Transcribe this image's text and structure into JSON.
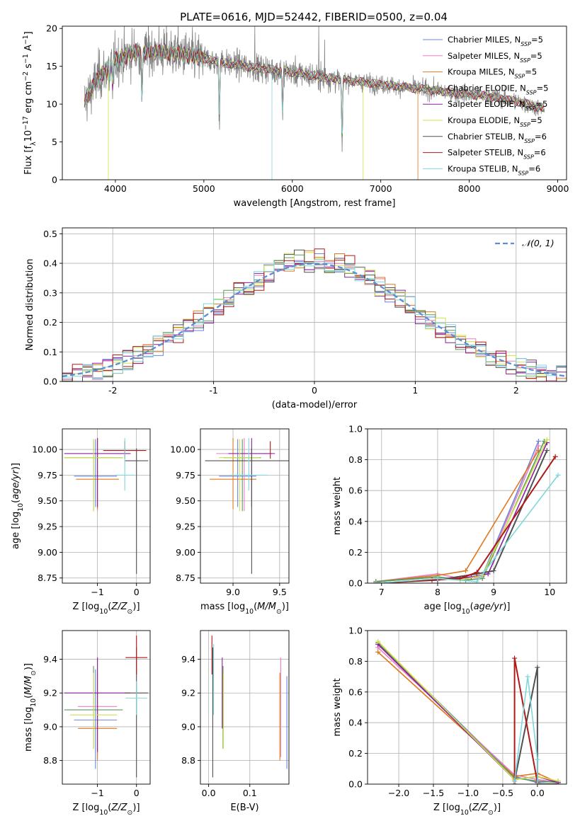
{
  "figure_title": "PLATE=0616, MJD=52442, FIBERID=0500, z=0.04",
  "colors": {
    "series": [
      "#6a86e0",
      "#e87fc2",
      "#e0781e",
      "#5a9a5a",
      "#8a1e9e",
      "#cfe24a",
      "#505050",
      "#b01818",
      "#7fd8dc"
    ],
    "gaussian": "#5b8fd4",
    "grid": "#b0b0b0",
    "spectrum_data": "#808080"
  },
  "legend_labels": {
    "spectrum": [
      {
        "pre": "Chabrier MILES, N",
        "sub": "SSP",
        "post": "=5"
      },
      {
        "pre": "Salpeter MILES, N",
        "sub": "SSP",
        "post": "=5"
      },
      {
        "pre": "Kroupa MILES, N",
        "sub": "SSP",
        "post": "=5"
      },
      {
        "pre": "Chabrier ELODIE, N",
        "sub": "SSP",
        "post": "=5"
      },
      {
        "pre": "Salpeter ELODIE, N",
        "sub": "SSP",
        "post": "=5"
      },
      {
        "pre": "Kroupa ELODIE, N",
        "sub": "SSP",
        "post": "=5"
      },
      {
        "pre": "Chabrier STELIB, N",
        "sub": "SSP",
        "post": "=6"
      },
      {
        "pre": "Salpeter STELIB, N",
        "sub": "SSP",
        "post": "=6"
      },
      {
        "pre": "Kroupa STELIB, N",
        "sub": "SSP",
        "post": "=6"
      }
    ],
    "gaussian": "𝒩(0, 1)"
  },
  "chart_data": [
    {
      "id": "spectrum",
      "type": "line",
      "xlabel": "wavelength [Angstrom, rest frame]",
      "ylabel": {
        "pre": "Flux [f",
        "sub": "λ",
        "mid": "10",
        "sup1": "−17",
        "post1": " erg cm",
        "sup2": "−2",
        "post2": " s",
        "sup3": "−1",
        "post3": " A",
        "sup4": "−1",
        "post4": "]"
      },
      "xlim": [
        3400,
        9100
      ],
      "ylim": [
        0,
        20.3
      ],
      "xticks": [
        4000,
        5000,
        6000,
        7000,
        8000,
        9000
      ],
      "yticks": [
        0,
        5,
        10,
        15,
        20
      ],
      "continuum": [
        [
          3650,
          10.3
        ],
        [
          3700,
          11.2
        ],
        [
          3800,
          13.5
        ],
        [
          3900,
          14.5
        ],
        [
          4000,
          15.8
        ],
        [
          4200,
          16.8
        ],
        [
          4400,
          17.0
        ],
        [
          4600,
          16.8
        ],
        [
          4800,
          16.5
        ],
        [
          5000,
          16.0
        ],
        [
          5300,
          15.3
        ],
        [
          5600,
          14.8
        ],
        [
          6000,
          14.2
        ],
        [
          6300,
          13.6
        ],
        [
          6600,
          13.2
        ],
        [
          7000,
          12.6
        ],
        [
          7300,
          12.2
        ],
        [
          7600,
          11.8
        ],
        [
          8000,
          11.3
        ],
        [
          8300,
          10.9
        ],
        [
          8600,
          10.2
        ],
        [
          8850,
          9.3
        ]
      ],
      "dips": [
        [
          3935,
          2
        ],
        [
          3970,
          3
        ],
        [
          4300,
          7
        ],
        [
          5175,
          8
        ],
        [
          5890,
          6
        ],
        [
          6563,
          9
        ]
      ],
      "model_drops": [
        {
          "series": 2,
          "x": 7420,
          "y": 0
        },
        {
          "series": 5,
          "x": 3920,
          "y": 0
        },
        {
          "series": 5,
          "x": 6800,
          "y": 0
        },
        {
          "series": 8,
          "x": 5770,
          "y": 0
        }
      ],
      "sky_spikes": [
        [
          5577,
          20.3
        ],
        [
          6300,
          20.3
        ],
        [
          6364,
          18.5
        ]
      ],
      "grid": false,
      "legend_position": "upper right"
    },
    {
      "id": "residuals",
      "type": "histogram",
      "xlabel": "(data-model)/error",
      "ylabel": "Normed distribution",
      "xlim": [
        -2.5,
        2.5
      ],
      "ylim": [
        0,
        0.52
      ],
      "xticks": [
        -2,
        -1,
        0,
        1,
        2
      ],
      "yticks": [
        0.0,
        0.1,
        0.2,
        0.3,
        0.4,
        0.5
      ],
      "bin_width": 0.1,
      "bin_range": [
        -2.5,
        2.5
      ],
      "gaussian": {
        "mu": 0,
        "sigma": 1
      },
      "grid": true,
      "legend_position": "upper right"
    },
    {
      "id": "age-vs-Z",
      "type": "errorbar",
      "xlabel": {
        "pre": "Z [log",
        "sub": "10",
        "mid": "(",
        "it": "Z/Z",
        "sub2": "⊙",
        "post": ")]"
      },
      "ylabel": {
        "pre": "age  [log",
        "sub": "10",
        "mid": "(",
        "it": "age/yr",
        "post": ")]"
      },
      "xlim": [
        -1.9,
        0.35
      ],
      "ylim": [
        8.7,
        10.2
      ],
      "xticks": [
        -1,
        0
      ],
      "yticks": [
        8.75,
        9.0,
        9.25,
        9.5,
        9.75,
        10.0
      ],
      "points": [
        {
          "s": 0,
          "x": -1.05,
          "y": 9.74,
          "xerr": 0.55,
          "yerr_lo": 0.3,
          "yerr_hi": 0.36
        },
        {
          "s": 1,
          "x": -1.0,
          "y": 9.96,
          "xerr": 0.85,
          "yerr_lo": 0.56,
          "yerr_hi": 0.15
        },
        {
          "s": 2,
          "x": -1.0,
          "y": 9.71,
          "xerr": 0.55,
          "yerr_lo": 0.29,
          "yerr_hi": 0.4
        },
        {
          "s": 3,
          "x": -1.1,
          "y": 9.92,
          "xerr": 0.75,
          "yerr_lo": 0.52,
          "yerr_hi": 0.18
        },
        {
          "s": 4,
          "x": -1.0,
          "y": 9.96,
          "xerr": 0.85,
          "yerr_lo": 0.52,
          "yerr_hi": 0.15
        },
        {
          "s": 5,
          "x": -1.1,
          "y": 9.92,
          "xerr": 0.75,
          "yerr_lo": 0.52,
          "yerr_hi": 0.18
        },
        {
          "s": 6,
          "x": 0.0,
          "y": 9.89,
          "xerr": 0.3,
          "yerr_lo": 1.1,
          "yerr_hi": 0.12
        },
        {
          "s": 7,
          "x": -0.3,
          "y": 9.99,
          "xerr": 0.55,
          "yerr_lo": 0.08,
          "yerr_hi": 0.09
        },
        {
          "s": 8,
          "x": -0.3,
          "y": 9.75,
          "xerr": 0.25,
          "yerr_lo": 0.15,
          "yerr_hi": 0.36
        }
      ],
      "grid": true
    },
    {
      "id": "age-vs-mass",
      "type": "errorbar",
      "xlabel": {
        "pre": "mass [log",
        "sub": "10",
        "mid": "(",
        "it": "M/M",
        "sub2": "⊙",
        "post": ")]"
      },
      "ylabel": "",
      "xlim": [
        8.65,
        9.6
      ],
      "ylim": [
        8.7,
        10.2
      ],
      "xticks": [
        9.0,
        9.5
      ],
      "yticks": [
        8.75,
        9.0,
        9.25,
        9.5,
        9.75,
        10.0
      ],
      "points": [
        {
          "s": 0,
          "x": 9.05,
          "y": 9.74,
          "xerr": 0.2,
          "yerr_lo": 0.3,
          "yerr_hi": 0.36
        },
        {
          "s": 1,
          "x": 9.12,
          "y": 9.96,
          "xerr": 0.3,
          "yerr_lo": 0.56,
          "yerr_hi": 0.15
        },
        {
          "s": 2,
          "x": 9.0,
          "y": 9.71,
          "xerr": 0.25,
          "yerr_lo": 0.29,
          "yerr_hi": 0.4
        },
        {
          "s": 3,
          "x": 9.1,
          "y": 9.92,
          "xerr": 0.2,
          "yerr_lo": 0.52,
          "yerr_hi": 0.18
        },
        {
          "s": 4,
          "x": 9.2,
          "y": 9.96,
          "xerr": 0.25,
          "yerr_lo": 0.52,
          "yerr_hi": 0.15
        },
        {
          "s": 5,
          "x": 9.07,
          "y": 9.92,
          "xerr": 0.22,
          "yerr_lo": 0.52,
          "yerr_hi": 0.18
        },
        {
          "s": 6,
          "x": 9.2,
          "y": 9.89,
          "xerr": 0.5,
          "yerr_lo": 1.1,
          "yerr_hi": 0.12
        },
        {
          "s": 7,
          "x": 9.4,
          "y": 9.99,
          "xerr": 0.0,
          "yerr_lo": 0.08,
          "yerr_hi": 0.09
        },
        {
          "s": 8,
          "x": 9.17,
          "y": 9.75,
          "xerr": 0.2,
          "yerr_lo": 0.15,
          "yerr_hi": 0.36
        }
      ],
      "grid": true
    },
    {
      "id": "massweight-vs-age",
      "type": "line",
      "xlabel": {
        "pre": "age  [log",
        "sub": "10",
        "mid": "(",
        "it": "age/yr",
        "post": ")]"
      },
      "ylabel": "mass weight",
      "xlim": [
        6.75,
        10.3
      ],
      "ylim": [
        0,
        1.0
      ],
      "xticks": [
        7,
        8,
        9,
        10
      ],
      "yticks": [
        0.0,
        0.2,
        0.4,
        0.6,
        0.8,
        1.0
      ],
      "series": [
        {
          "s": 0,
          "x": [
            6.9,
            8.0,
            8.4,
            8.8,
            9.8
          ],
          "y": [
            0.01,
            0.04,
            0.02,
            0.05,
            0.92
          ]
        },
        {
          "s": 1,
          "x": 6.9,
          "x_pts": [
            6.9,
            8.0,
            8.4,
            8.8,
            9.8
          ],
          "y": [
            0.01,
            0.06,
            0.03,
            0.04,
            0.89
          ]
        },
        {
          "s": 2,
          "x": [
            6.9,
            8.0,
            8.5,
            9.8
          ],
          "y": [
            0.01,
            0.05,
            0.08,
            0.86
          ]
        },
        {
          "s": 3,
          "x": [
            6.9,
            8.0,
            8.5,
            8.8,
            9.9
          ],
          "y": [
            0.01,
            0.04,
            0.02,
            0.03,
            0.92
          ]
        },
        {
          "s": 4,
          "x": [
            6.9,
            8.0,
            8.6,
            8.9,
            9.95
          ],
          "y": [
            0.0,
            0.02,
            0.04,
            0.06,
            0.91
          ]
        },
        {
          "s": 5,
          "x": [
            6.9,
            8.0,
            8.4,
            8.8,
            9.95
          ],
          "y": [
            0.0,
            0.03,
            0.02,
            0.05,
            0.93
          ]
        },
        {
          "s": 6,
          "x": [
            6.9,
            8.0,
            8.7,
            9.0,
            9.95
          ],
          "y": [
            0.0,
            0.02,
            0.06,
            0.08,
            0.86
          ]
        },
        {
          "s": 7,
          "x": [
            6.9,
            7.9,
            8.4,
            8.7,
            10.1
          ],
          "y": [
            0.0,
            0.02,
            0.03,
            0.07,
            0.82
          ]
        },
        {
          "s": 8,
          "x": [
            6.9,
            8.0,
            8.7,
            10.15
          ],
          "y": [
            0.0,
            0.03,
            0.01,
            0.7
          ]
        }
      ],
      "grid": true
    },
    {
      "id": "mass-vs-Z",
      "type": "errorbar",
      "xlabel": {
        "pre": "Z [log",
        "sub": "10",
        "mid": "(",
        "it": "Z/Z",
        "sub2": "⊙",
        "post": ")]"
      },
      "ylabel": {
        "pre": "mass [log",
        "sub": "10",
        "mid": "(",
        "it": "M/M",
        "sub2": "⊙",
        "post": ")]"
      },
      "xlim": [
        -1.9,
        0.35
      ],
      "ylim": [
        8.66,
        9.57
      ],
      "xticks": [
        -1,
        0
      ],
      "yticks": [
        8.8,
        9.0,
        9.2,
        9.4
      ],
      "points": [
        {
          "s": 0,
          "x": -1.05,
          "y": 9.04,
          "xerr": 0.55,
          "yerr_lo": 0.29,
          "yerr_hi": 0.3
        },
        {
          "s": 1,
          "x": -1.0,
          "y": 9.12,
          "xerr": 0.5,
          "yerr_lo": 0.3,
          "yerr_hi": 0.29
        },
        {
          "s": 2,
          "x": -1.0,
          "y": 8.99,
          "xerr": 0.5,
          "yerr_lo": 0.19,
          "yerr_hi": 0.33
        },
        {
          "s": 3,
          "x": -1.1,
          "y": 9.1,
          "xerr": 0.75,
          "yerr_lo": 0.23,
          "yerr_hi": 0.26
        },
        {
          "s": 4,
          "x": -1.0,
          "y": 9.2,
          "xerr": 0.85,
          "yerr_lo": 0.35,
          "yerr_hi": 0.21
        },
        {
          "s": 5,
          "x": -1.1,
          "y": 9.07,
          "xerr": 0.6,
          "yerr_lo": 0.2,
          "yerr_hi": 0.25
        },
        {
          "s": 6,
          "x": 0.0,
          "y": 9.2,
          "xerr": 0.3,
          "yerr_lo": 0.5,
          "yerr_hi": 0.27
        },
        {
          "s": 7,
          "x": 0.0,
          "y": 9.41,
          "xerr": 0.28,
          "yerr_lo": 0.1,
          "yerr_hi": 0.13
        },
        {
          "s": 8,
          "x": 0.0,
          "y": 9.17,
          "xerr": 0.28,
          "yerr_lo": 0.1,
          "yerr_hi": 0.1
        }
      ],
      "grid": true
    },
    {
      "id": "mass-vs-EBV",
      "type": "errorbar",
      "xlabel": "E(B-V)",
      "ylabel": "",
      "xlim": [
        -0.02,
        0.195
      ],
      "ylim": [
        8.66,
        9.57
      ],
      "xticks": [
        0.0,
        0.1
      ],
      "yticks": [
        8.8,
        9.0,
        9.2,
        9.4
      ],
      "points": [
        {
          "s": 0,
          "x": 0.19,
          "y": 9.04,
          "xerr": 0,
          "yerr_lo": 0.29,
          "yerr_hi": 0.26
        },
        {
          "s": 1,
          "x": 0.175,
          "y": 9.12,
          "xerr": 0,
          "yerr_lo": 0.3,
          "yerr_hi": 0.29
        },
        {
          "s": 2,
          "x": 0.173,
          "y": 9.05,
          "xerr": 0,
          "yerr_lo": 0.25,
          "yerr_hi": 0.27
        },
        {
          "s": 3,
          "x": 0.035,
          "y": 9.1,
          "xerr": 0,
          "yerr_lo": 0.23,
          "yerr_hi": 0.26
        },
        {
          "s": 4,
          "x": 0.033,
          "y": 9.2,
          "xerr": 0,
          "yerr_lo": 0.21,
          "yerr_hi": 0.21
        },
        {
          "s": 5,
          "x": 0.036,
          "y": 9.07,
          "xerr": 0,
          "yerr_lo": 0.2,
          "yerr_hi": 0.25
        },
        {
          "s": 6,
          "x": 0.01,
          "y": 9.2,
          "xerr": 0,
          "yerr_lo": 0.5,
          "yerr_hi": 0.27
        },
        {
          "s": 7,
          "x": 0.008,
          "y": 9.41,
          "xerr": 0,
          "yerr_lo": 0.1,
          "yerr_hi": 0.13
        },
        {
          "s": 8,
          "x": 0.012,
          "y": 9.17,
          "xerr": 0,
          "yerr_lo": 0.1,
          "yerr_hi": 0.32
        }
      ],
      "grid": true
    },
    {
      "id": "massweight-vs-Z",
      "type": "line",
      "xlabel": {
        "pre": "Z [log",
        "sub": "10",
        "mid": "(",
        "it": "Z/Z",
        "sub2": "⊙",
        "post": ")]"
      },
      "ylabel": "mass weight",
      "xlim": [
        -2.45,
        0.42
      ],
      "ylim": [
        0,
        1.0
      ],
      "xticks": [
        -2.0,
        -1.5,
        -1.0,
        -0.5,
        0.0
      ],
      "xticklabels": [
        "−2.0",
        "−1.5",
        "−1.0",
        "−0.5",
        "0.0"
      ],
      "yticks": [
        0.0,
        0.2,
        0.4,
        0.6,
        0.8,
        1.0
      ],
      "series": [
        {
          "s": 0,
          "x": [
            -2.3,
            -0.33,
            0.0,
            0.3
          ],
          "y": [
            0.92,
            0.05,
            0.01,
            0.02
          ]
        },
        {
          "s": 1,
          "x": [
            -2.3,
            -0.33,
            0.0,
            0.3
          ],
          "y": [
            0.89,
            0.06,
            0.03,
            0.01
          ]
        },
        {
          "s": 2,
          "x": [
            -2.3,
            -0.33,
            0.0,
            0.3
          ],
          "y": [
            0.86,
            0.05,
            0.07,
            0.01
          ]
        },
        {
          "s": 3,
          "x": [
            -2.3,
            -0.33,
            0.0,
            0.3
          ],
          "y": [
            0.92,
            0.04,
            0.02,
            0.01
          ]
        },
        {
          "s": 4,
          "x": [
            -2.3,
            -0.33,
            0.0,
            0.3
          ],
          "y": [
            0.91,
            0.03,
            0.05,
            0.01
          ]
        },
        {
          "s": 5,
          "x": [
            -2.3,
            -0.33,
            0.0,
            0.3
          ],
          "y": [
            0.93,
            0.03,
            0.05,
            0.02
          ]
        },
        {
          "s": 6,
          "x": [
            -0.33,
            0.0,
            0.0,
            0.3
          ],
          "y": [
            0.02,
            0.76,
            0.0,
            0.0
          ]
        },
        {
          "s": 7,
          "x": [
            -0.33,
            -0.33,
            0.0
          ],
          "y": [
            0.0,
            0.82,
            0.01
          ]
        },
        {
          "s": 8,
          "x": [
            -0.33,
            -0.14,
            0.0,
            0.0
          ],
          "y": [
            0.02,
            0.7,
            0.16,
            0.0
          ]
        }
      ],
      "grid": true
    }
  ]
}
